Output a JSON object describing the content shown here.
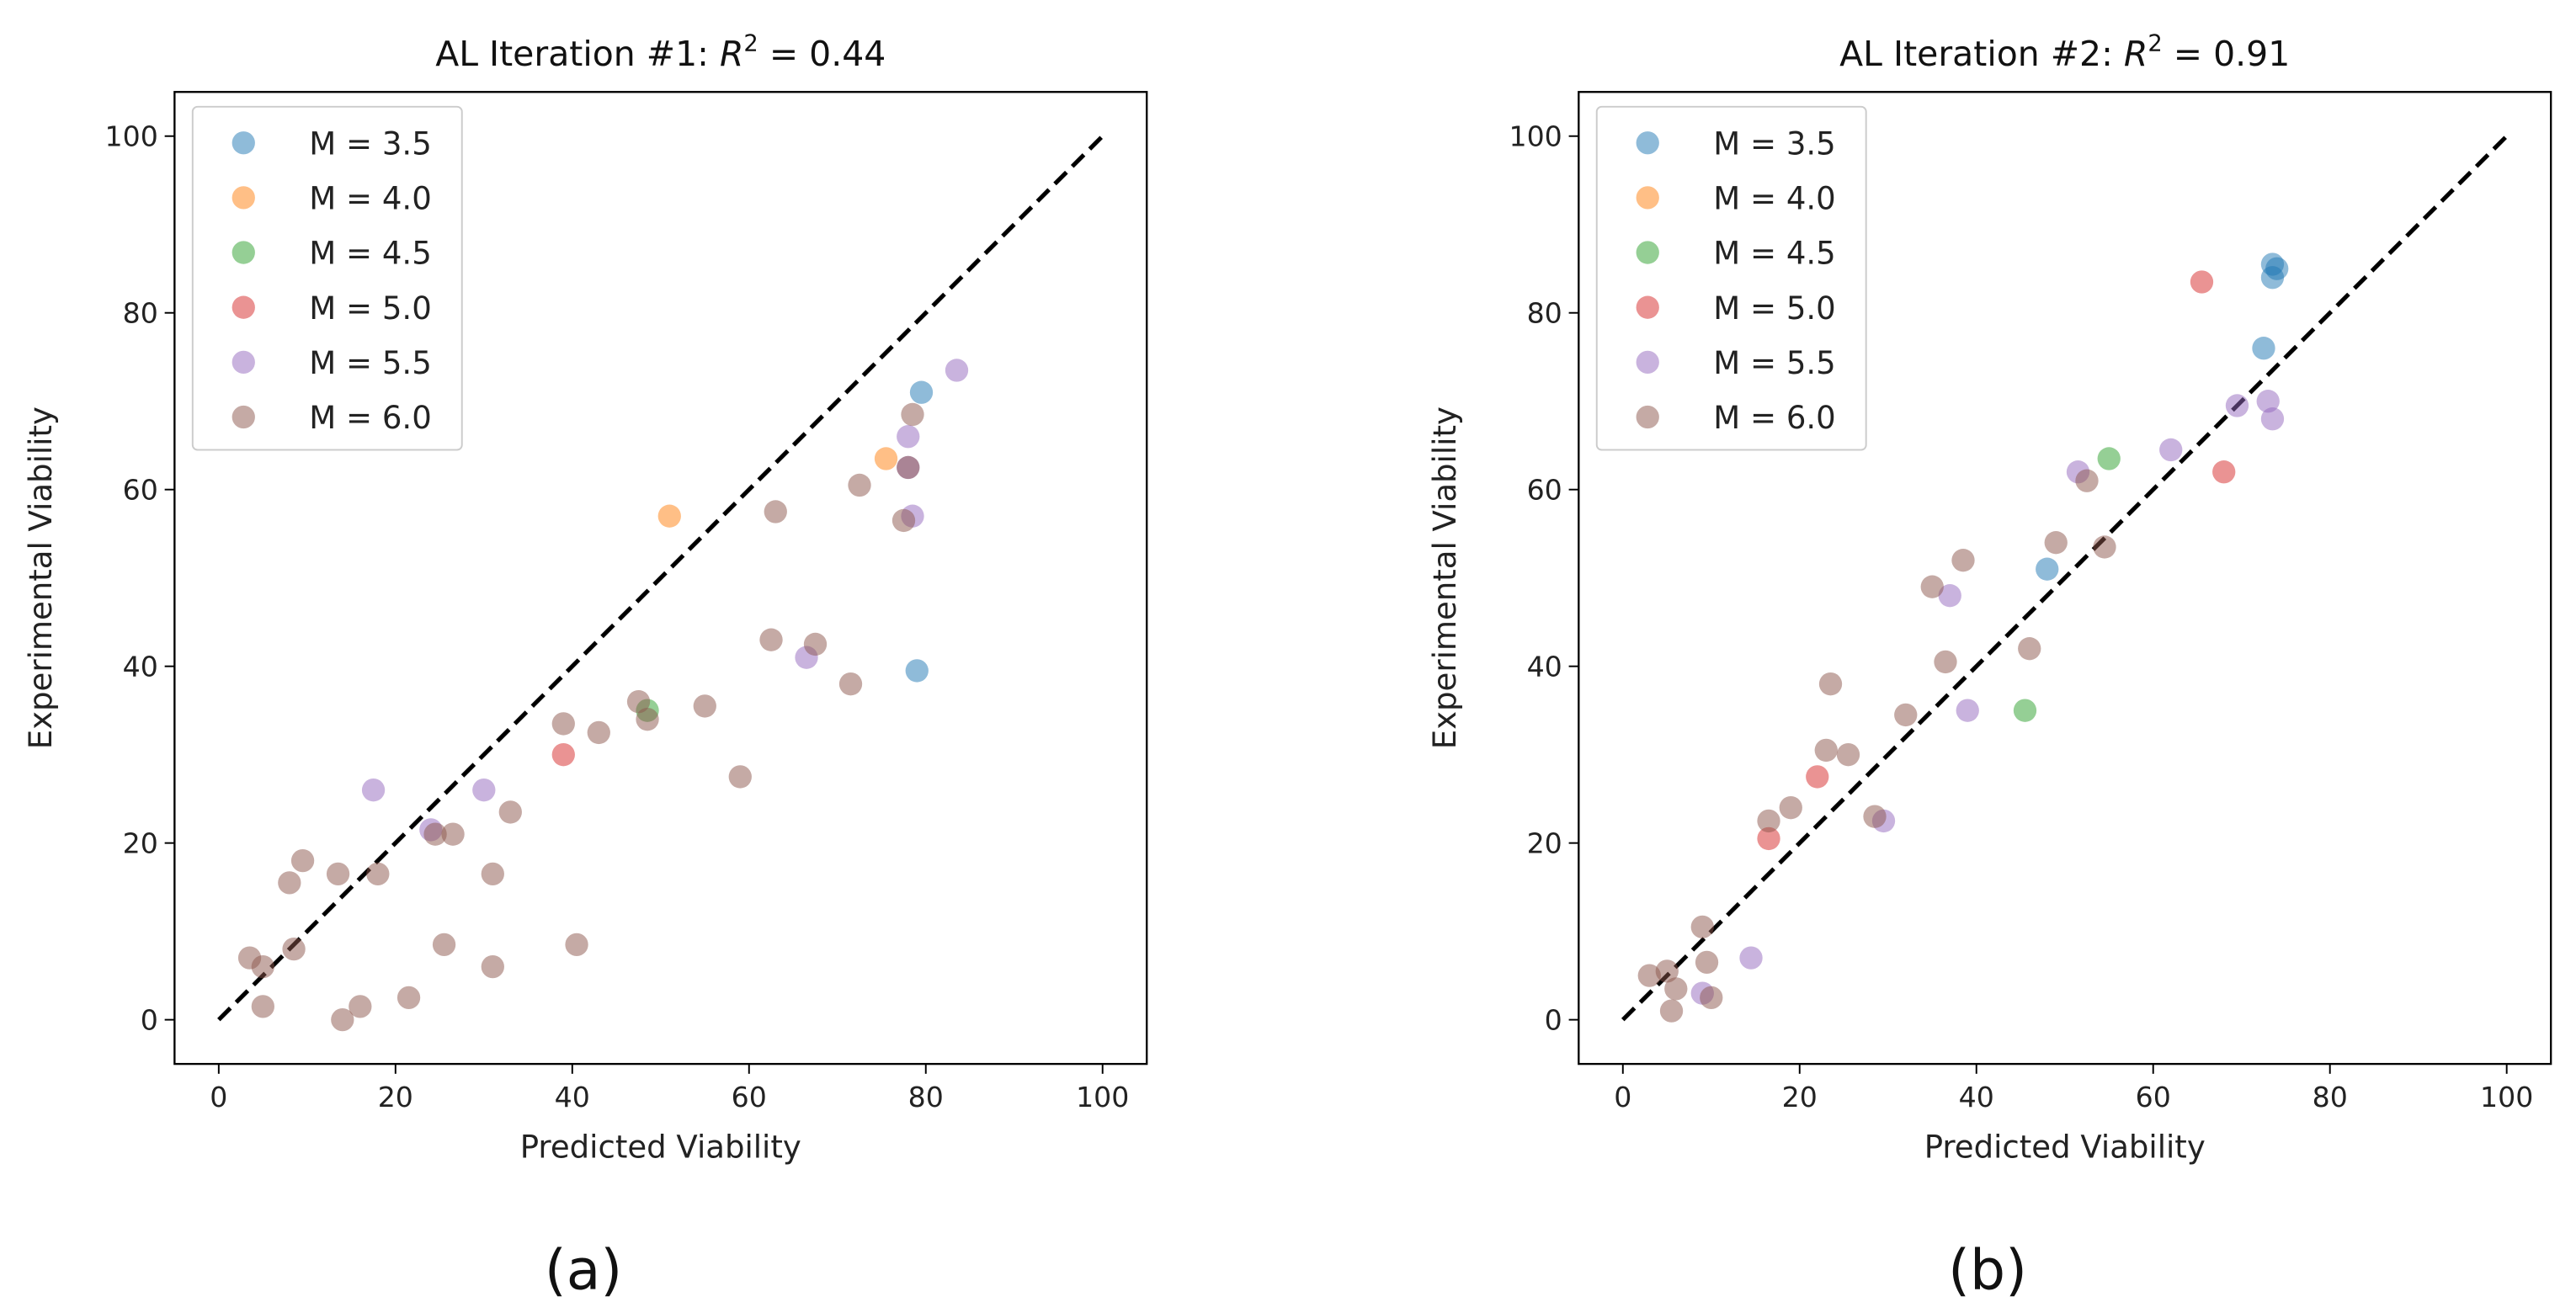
{
  "chart_data": [
    {
      "type": "scatter",
      "title_text": "AL Iteration #1: ",
      "title_var": "R",
      "title_sup": "2",
      "title_value": " = 0.44",
      "caption": "(a)",
      "xlabel": "Predicted Viability",
      "ylabel": "Experimental Viability",
      "xlim": [
        -5,
        105
      ],
      "ylim": [
        -5,
        105
      ],
      "xticks": [
        0,
        20,
        40,
        60,
        80,
        100
      ],
      "yticks": [
        0,
        20,
        40,
        60,
        80,
        100
      ],
      "grid": false,
      "legend_position": "top-left",
      "reference_line": {
        "style": "dashed",
        "color": "#000000",
        "from": [
          0,
          0
        ],
        "to": [
          100,
          100
        ]
      },
      "series": [
        {
          "name": "M = 3.5",
          "color": "#1f77b4",
          "points": [
            [
              79.5,
              71
            ],
            [
              79,
              39.5
            ]
          ]
        },
        {
          "name": "M = 4.0",
          "color": "#ff7f0e",
          "points": [
            [
              51,
              57
            ],
            [
              75.5,
              63.5
            ]
          ]
        },
        {
          "name": "M = 4.5",
          "color": "#2ca02c",
          "points": [
            [
              48.5,
              35
            ]
          ]
        },
        {
          "name": "M = 5.0",
          "color": "#d62728",
          "points": [
            [
              39,
              30
            ]
          ]
        },
        {
          "name": "M = 5.5",
          "color": "#9467bd",
          "points": [
            [
              83.5,
              73.5
            ],
            [
              78,
              66
            ],
            [
              78,
              62.5
            ],
            [
              78.5,
              57
            ],
            [
              66.5,
              41
            ],
            [
              17.5,
              26
            ],
            [
              30,
              26
            ],
            [
              24,
              21.5
            ]
          ]
        },
        {
          "name": "M = 6.0",
          "color": "#8c564b",
          "points": [
            [
              78.5,
              68.5
            ],
            [
              78,
              62.5
            ],
            [
              72.5,
              60.5
            ],
            [
              63,
              57.5
            ],
            [
              77.5,
              56.5
            ],
            [
              62.5,
              43
            ],
            [
              67.5,
              42.5
            ],
            [
              71.5,
              38
            ],
            [
              47.5,
              36
            ],
            [
              48.5,
              34
            ],
            [
              39,
              33.5
            ],
            [
              43,
              32.5
            ],
            [
              55,
              35.5
            ],
            [
              59,
              27.5
            ],
            [
              33,
              23.5
            ],
            [
              26.5,
              21
            ],
            [
              24.5,
              21
            ],
            [
              31,
              16.5
            ],
            [
              9.5,
              18
            ],
            [
              8,
              15.5
            ],
            [
              13.5,
              16.5
            ],
            [
              18,
              16.5
            ],
            [
              3.5,
              7
            ],
            [
              5,
              6
            ],
            [
              8.5,
              8
            ],
            [
              25.5,
              8.5
            ],
            [
              31,
              6
            ],
            [
              40.5,
              8.5
            ],
            [
              5,
              1.5
            ],
            [
              14,
              0
            ],
            [
              16,
              1.5
            ],
            [
              21.5,
              2.5
            ]
          ]
        }
      ]
    },
    {
      "type": "scatter",
      "title_text": "AL Iteration #2: ",
      "title_var": "R",
      "title_sup": "2",
      "title_value": " = 0.91",
      "caption": "(b)",
      "xlabel": "Predicted Viability",
      "ylabel": "Experimental Viability",
      "xlim": [
        -5,
        105
      ],
      "ylim": [
        -5,
        105
      ],
      "xticks": [
        0,
        20,
        40,
        60,
        80,
        100
      ],
      "yticks": [
        0,
        20,
        40,
        60,
        80,
        100
      ],
      "grid": false,
      "legend_position": "top-left",
      "reference_line": {
        "style": "dashed",
        "color": "#000000",
        "from": [
          0,
          0
        ],
        "to": [
          100,
          100
        ]
      },
      "series": [
        {
          "name": "M = 3.5",
          "color": "#1f77b4",
          "points": [
            [
              73.5,
              85.5
            ],
            [
              74,
              85
            ],
            [
              73.5,
              84
            ],
            [
              72.5,
              76
            ],
            [
              48,
              51
            ]
          ]
        },
        {
          "name": "M = 4.0",
          "color": "#ff7f0e",
          "points": []
        },
        {
          "name": "M = 4.5",
          "color": "#2ca02c",
          "points": [
            [
              55,
              63.5
            ],
            [
              45.5,
              35
            ]
          ]
        },
        {
          "name": "M = 5.0",
          "color": "#d62728",
          "points": [
            [
              65.5,
              83.5
            ],
            [
              68,
              62
            ],
            [
              22,
              27.5
            ],
            [
              16.5,
              20.5
            ]
          ]
        },
        {
          "name": "M = 5.5",
          "color": "#9467bd",
          "points": [
            [
              51.5,
              62
            ],
            [
              62,
              64.5
            ],
            [
              69.5,
              69.5
            ],
            [
              73,
              70
            ],
            [
              73.5,
              68
            ],
            [
              37,
              48
            ],
            [
              39,
              35
            ],
            [
              29.5,
              22.5
            ],
            [
              14.5,
              7
            ],
            [
              9,
              3
            ]
          ]
        },
        {
          "name": "M = 6.0",
          "color": "#8c564b",
          "points": [
            [
              52.5,
              61
            ],
            [
              49,
              54
            ],
            [
              54.5,
              53.5
            ],
            [
              38.5,
              52
            ],
            [
              35,
              49
            ],
            [
              36.5,
              40.5
            ],
            [
              46,
              42
            ],
            [
              23.5,
              38
            ],
            [
              32,
              34.5
            ],
            [
              23,
              30.5
            ],
            [
              25.5,
              30
            ],
            [
              19,
              24
            ],
            [
              16.5,
              22.5
            ],
            [
              28.5,
              23
            ],
            [
              9,
              10.5
            ],
            [
              3,
              5
            ],
            [
              5,
              5.5
            ],
            [
              6,
              3.5
            ],
            [
              9.5,
              6.5
            ],
            [
              10,
              2.5
            ],
            [
              5.5,
              1
            ]
          ]
        }
      ]
    }
  ]
}
